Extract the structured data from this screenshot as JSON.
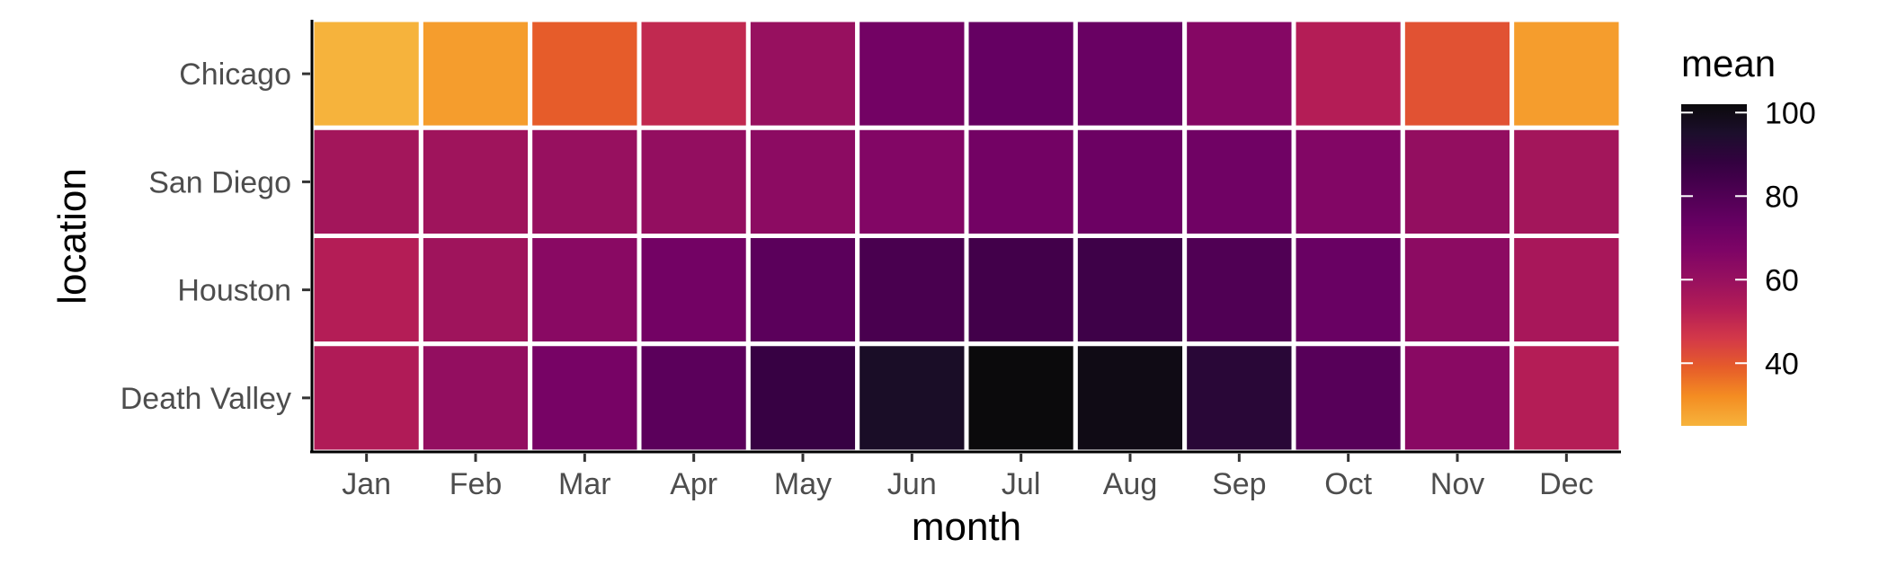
{
  "chart_data": {
    "type": "heatmap",
    "x": [
      "Jan",
      "Feb",
      "Mar",
      "Apr",
      "May",
      "Jun",
      "Jul",
      "Aug",
      "Sep",
      "Oct",
      "Nov",
      "Dec"
    ],
    "y": [
      "Chicago",
      "San Diego",
      "Houston",
      "Death Valley"
    ],
    "values": [
      [
        25,
        29,
        39,
        50,
        60,
        70,
        74,
        73,
        65,
        53,
        41,
        29
      ],
      [
        57,
        58,
        60,
        61,
        63,
        66,
        70,
        72,
        71,
        66,
        61,
        57
      ],
      [
        53,
        58,
        64,
        70,
        77,
        82,
        84,
        85,
        80,
        73,
        63,
        56
      ],
      [
        54,
        61,
        69,
        77,
        87,
        96,
        102,
        100,
        91,
        78,
        64,
        53
      ]
    ],
    "xlabel": "month",
    "ylabel": "location",
    "legend": {
      "title": "mean",
      "ticks": [
        40,
        60,
        80,
        100
      ],
      "range": [
        25,
        102
      ],
      "palette": [
        "#f6b33c",
        "#f48d22",
        "#e65c2a",
        "#d33849",
        "#b41d56",
        "#97105f",
        "#7e0466",
        "#650062",
        "#4d0052",
        "#330140",
        "#1c0e2c",
        "#0b0a0c"
      ]
    }
  }
}
